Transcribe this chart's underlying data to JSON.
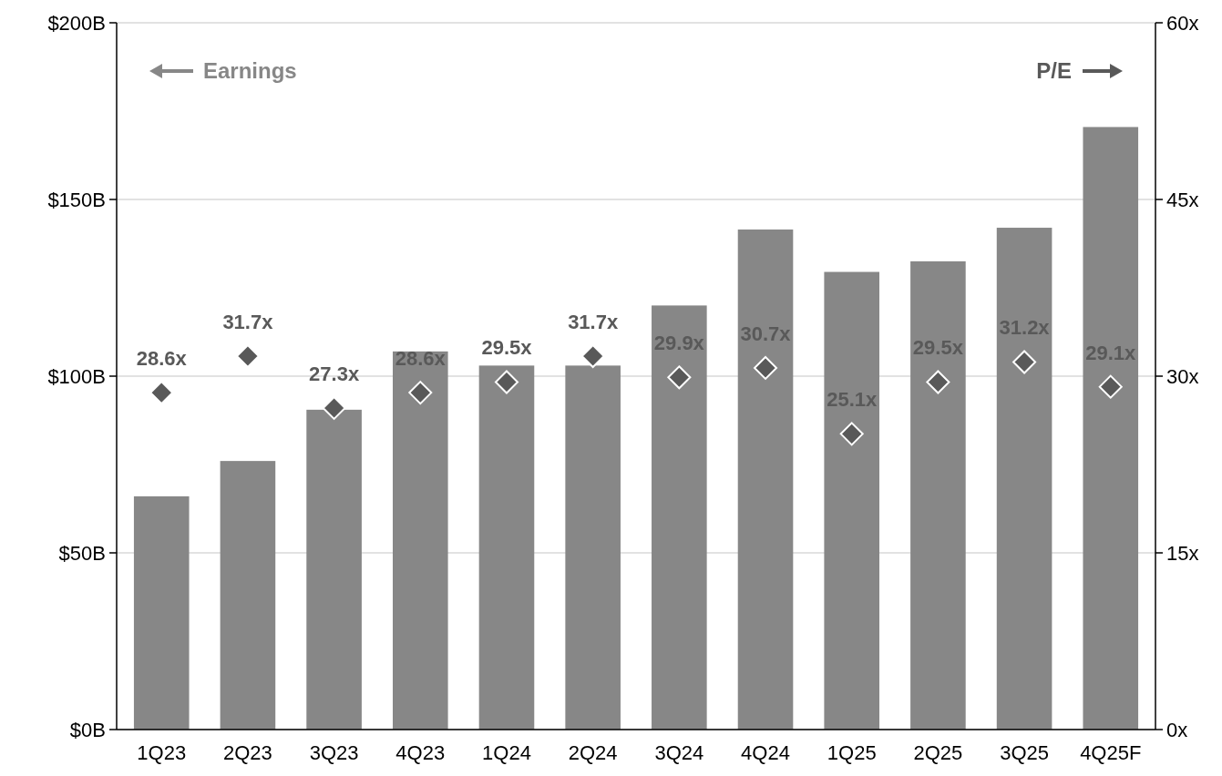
{
  "chart_data": {
    "type": "bar",
    "categories": [
      "1Q23",
      "2Q23",
      "3Q23",
      "4Q23",
      "1Q24",
      "2Q24",
      "3Q24",
      "4Q24",
      "1Q25",
      "2Q25",
      "3Q25",
      "4Q25F"
    ],
    "series": [
      {
        "color": "#878787",
        "values": [
          66,
          76,
          90.5,
          107,
          103,
          103,
          120,
          141.5,
          129.5,
          132.5,
          142,
          170.5
        ]
      },
      {
        "type": "scatter",
        "axis": "y2",
        "color": "#595959",
        "marker": "diamond",
        "values": [
          28.6,
          31.7,
          27.3,
          28.6,
          29.5,
          31.7,
          29.9,
          30.7,
          25.1,
          29.5,
          31.2,
          29.1
        ],
        "value_labels": [
          "28.6x",
          "31.7x",
          "27.3x",
          "28.6x",
          "29.5x",
          "31.7x",
          "29.9x",
          "30.7x",
          "25.1x",
          "29.5x",
          "31.2x",
          "29.1x"
        ]
      }
    ],
    "ylim": [
      0,
      200
    ],
    "yticks": [
      {
        "value": 0,
        "label": "$0B"
      },
      {
        "value": 50,
        "label": "$50B"
      },
      {
        "value": 100,
        "label": "$100B"
      },
      {
        "value": 150,
        "label": "$150B"
      },
      {
        "value": 200,
        "label": "$200B"
      }
    ],
    "y2lim": [
      0,
      60
    ],
    "y2ticks": [
      {
        "value": 0,
        "label": "0x"
      },
      {
        "value": 15,
        "label": "15x"
      },
      {
        "value": 30,
        "label": "30x"
      },
      {
        "value": 45,
        "label": "45x"
      },
      {
        "value": 60,
        "label": "60x"
      }
    ],
    "grid": "y",
    "annotations": [
      "Earnings",
      "P/E"
    ]
  }
}
